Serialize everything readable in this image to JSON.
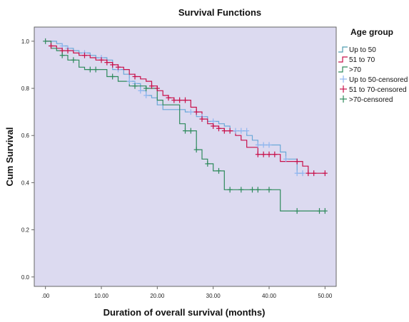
{
  "chart_data": {
    "type": "line",
    "subtype": "kaplan-meier-step",
    "title": "Survival Functions",
    "xlabel": "Duration of overall survival (months)",
    "ylabel": "Cum Survival",
    "xlim": [
      -2,
      52
    ],
    "ylim": [
      -0.04,
      1.06
    ],
    "xticks": [
      0,
      10,
      20,
      30,
      40,
      50
    ],
    "xtick_labels": [
      ".00",
      "10.00",
      "20.00",
      "30.00",
      "40.00",
      "50.00"
    ],
    "yticks": [
      0.0,
      0.2,
      0.4,
      0.6,
      0.8,
      1.0
    ],
    "ytick_labels": [
      "0.0",
      "0.2",
      "0.4",
      "0.6",
      "0.8",
      "1.0"
    ],
    "grid": false,
    "background": "#dcdaf0",
    "legend": {
      "title": "Age group",
      "placement": "right",
      "entries": [
        {
          "label": "Up to 50",
          "color": "#4f9db0",
          "kind": "step"
        },
        {
          "label": "51 to 70",
          "color": "#c8104a",
          "kind": "step"
        },
        {
          "label": ">70",
          "color": "#2e8a5c",
          "kind": "step"
        },
        {
          "label": "Up to 50-censored",
          "color": "#8fb6f0",
          "kind": "censor"
        },
        {
          "label": "51 to 70-censored",
          "color": "#c8104a",
          "kind": "censor"
        },
        {
          "label": ">70-censored",
          "color": "#2e8a5c",
          "kind": "censor"
        }
      ]
    },
    "series": [
      {
        "name": "Up to 50",
        "line_color": "#6aa8d8",
        "censor_color": "#8fb6f0",
        "steps": [
          [
            0,
            1.0
          ],
          [
            2,
            0.99
          ],
          [
            3,
            0.98
          ],
          [
            4,
            0.97
          ],
          [
            5,
            0.96
          ],
          [
            6,
            0.95
          ],
          [
            8,
            0.94
          ],
          [
            9,
            0.93
          ],
          [
            11,
            0.92
          ],
          [
            12,
            0.88
          ],
          [
            14,
            0.86
          ],
          [
            15,
            0.83
          ],
          [
            16,
            0.82
          ],
          [
            17,
            0.79
          ],
          [
            18,
            0.77
          ],
          [
            19,
            0.76
          ],
          [
            20,
            0.73
          ],
          [
            21,
            0.71
          ],
          [
            25,
            0.7
          ],
          [
            27,
            0.68
          ],
          [
            29,
            0.66
          ],
          [
            31,
            0.65
          ],
          [
            32,
            0.64
          ],
          [
            33,
            0.62
          ],
          [
            36,
            0.6
          ],
          [
            37,
            0.58
          ],
          [
            38,
            0.56
          ],
          [
            42,
            0.53
          ],
          [
            43,
            0.5
          ],
          [
            45,
            0.44
          ]
        ],
        "end_x": 46,
        "censored": [
          [
            3,
            0.98
          ],
          [
            4,
            0.97
          ],
          [
            7,
            0.95
          ],
          [
            10,
            0.93
          ],
          [
            13,
            0.88
          ],
          [
            15,
            0.83
          ],
          [
            16,
            0.82
          ],
          [
            17,
            0.79
          ],
          [
            18,
            0.77
          ],
          [
            26,
            0.7
          ],
          [
            28,
            0.68
          ],
          [
            30,
            0.66
          ],
          [
            34,
            0.62
          ],
          [
            35,
            0.62
          ],
          [
            36,
            0.62
          ],
          [
            38,
            0.56
          ],
          [
            39,
            0.56
          ],
          [
            40,
            0.56
          ],
          [
            43,
            0.5
          ],
          [
            45,
            0.44
          ],
          [
            46,
            0.44
          ]
        ]
      },
      {
        "name": "51 to 70",
        "line_color": "#c8104a",
        "censor_color": "#c8104a",
        "steps": [
          [
            0,
            1.0
          ],
          [
            1,
            0.98
          ],
          [
            2,
            0.97
          ],
          [
            3,
            0.96
          ],
          [
            5,
            0.95
          ],
          [
            6,
            0.94
          ],
          [
            8,
            0.93
          ],
          [
            9,
            0.92
          ],
          [
            11,
            0.91
          ],
          [
            12,
            0.9
          ],
          [
            13,
            0.89
          ],
          [
            14,
            0.88
          ],
          [
            15,
            0.86
          ],
          [
            16,
            0.85
          ],
          [
            17,
            0.84
          ],
          [
            18,
            0.83
          ],
          [
            19,
            0.81
          ],
          [
            20,
            0.79
          ],
          [
            21,
            0.77
          ],
          [
            22,
            0.76
          ],
          [
            23,
            0.75
          ],
          [
            26,
            0.72
          ],
          [
            27,
            0.7
          ],
          [
            28,
            0.67
          ],
          [
            29,
            0.65
          ],
          [
            30,
            0.64
          ],
          [
            31,
            0.63
          ],
          [
            32,
            0.62
          ],
          [
            34,
            0.6
          ],
          [
            35,
            0.58
          ],
          [
            36,
            0.55
          ],
          [
            38,
            0.52
          ],
          [
            42,
            0.49
          ],
          [
            44,
            0.49
          ],
          [
            46,
            0.47
          ],
          [
            47,
            0.44
          ]
        ],
        "end_x": 50,
        "censored": [
          [
            1,
            0.98
          ],
          [
            3,
            0.96
          ],
          [
            4,
            0.96
          ],
          [
            7,
            0.94
          ],
          [
            10,
            0.92
          ],
          [
            11,
            0.91
          ],
          [
            12,
            0.9
          ],
          [
            13,
            0.89
          ],
          [
            16,
            0.85
          ],
          [
            19,
            0.81
          ],
          [
            20,
            0.8
          ],
          [
            22,
            0.76
          ],
          [
            23,
            0.75
          ],
          [
            24,
            0.75
          ],
          [
            25,
            0.75
          ],
          [
            27,
            0.7
          ],
          [
            28,
            0.67
          ],
          [
            30,
            0.64
          ],
          [
            31,
            0.63
          ],
          [
            32,
            0.62
          ],
          [
            33,
            0.62
          ],
          [
            38,
            0.52
          ],
          [
            39,
            0.52
          ],
          [
            40,
            0.52
          ],
          [
            41,
            0.52
          ],
          [
            45,
            0.49
          ],
          [
            47,
            0.44
          ],
          [
            48,
            0.44
          ],
          [
            50,
            0.44
          ]
        ]
      },
      {
        "name": ">70",
        "line_color": "#2e8a5c",
        "censor_color": "#2e8a5c",
        "steps": [
          [
            0,
            1.0
          ],
          [
            1,
            0.97
          ],
          [
            2,
            0.96
          ],
          [
            3,
            0.94
          ],
          [
            4,
            0.92
          ],
          [
            6,
            0.89
          ],
          [
            7,
            0.88
          ],
          [
            11,
            0.85
          ],
          [
            13,
            0.83
          ],
          [
            15,
            0.81
          ],
          [
            18,
            0.8
          ],
          [
            20,
            0.75
          ],
          [
            21,
            0.73
          ],
          [
            24,
            0.65
          ],
          [
            25,
            0.62
          ],
          [
            27,
            0.54
          ],
          [
            28,
            0.5
          ],
          [
            29,
            0.48
          ],
          [
            30,
            0.45
          ],
          [
            32,
            0.37
          ],
          [
            42,
            0.28
          ]
        ],
        "end_x": 50,
        "censored": [
          [
            0,
            1.0
          ],
          [
            3,
            0.94
          ],
          [
            5,
            0.92
          ],
          [
            8,
            0.88
          ],
          [
            9,
            0.88
          ],
          [
            12,
            0.85
          ],
          [
            16,
            0.81
          ],
          [
            18,
            0.8
          ],
          [
            25,
            0.62
          ],
          [
            26,
            0.62
          ],
          [
            27,
            0.54
          ],
          [
            29,
            0.48
          ],
          [
            31,
            0.45
          ],
          [
            33,
            0.37
          ],
          [
            35,
            0.37
          ],
          [
            37,
            0.37
          ],
          [
            38,
            0.37
          ],
          [
            40,
            0.37
          ],
          [
            45,
            0.28
          ],
          [
            49,
            0.28
          ],
          [
            50,
            0.28
          ]
        ]
      }
    ]
  }
}
